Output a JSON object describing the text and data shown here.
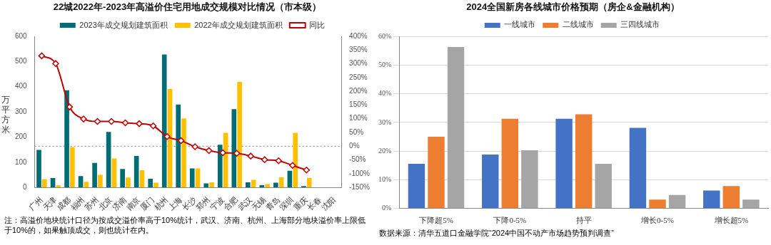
{
  "chart_data": [
    {
      "type": "bar",
      "title": "22城2022年-2023年高溢价住宅用地成交规模对比情况（市本级）",
      "ylabel": "万平方米",
      "categories": [
        "广州",
        "天津",
        "成都",
        "福州",
        "苏州",
        "北京",
        "济南",
        "南京",
        "厦门",
        "杭州",
        "上海",
        "长沙",
        "郑州",
        "宁波",
        "合肥",
        "武汉",
        "无锡",
        "青岛",
        "深圳",
        "重庆",
        "长春",
        "沈阳"
      ],
      "series": [
        {
          "name": "2023年成交规划建筑面积",
          "color": "#006d75",
          "values": [
            149,
            37,
            386,
            45,
            97,
            220,
            73,
            125,
            34,
            528,
            329,
            75,
            16,
            169,
            311,
            20,
            9,
            19,
            66,
            5,
            0,
            0
          ]
        },
        {
          "name": "2022年成交规划建筑面积",
          "color": "#ffc000",
          "values": [
            33,
            8,
            160,
            22,
            50,
            115,
            39,
            68,
            19,
            391,
            274,
            75,
            20,
            217,
            419,
            30,
            13,
            40,
            217,
            38,
            0,
            0
          ]
        },
        {
          "name": "同比",
          "type": "line",
          "axis": "y2",
          "color": "#c00000",
          "marker": "diamond",
          "values": [
            329,
            301,
            143,
            99,
            90,
            90,
            85,
            82,
            74,
            35,
            20,
            -2,
            -16,
            -24,
            -26,
            -36,
            -49,
            -53,
            -70,
            -87,
            null,
            null
          ]
        }
      ],
      "ylim": [
        0,
        600
      ],
      "yticks": [
        0,
        100,
        200,
        300,
        400,
        500,
        600
      ],
      "y2lim": [
        -150,
        400
      ],
      "y2ticks": [
        {
          "value": -150,
          "label": "-150%"
        },
        {
          "value": -100,
          "label": "-100%"
        },
        {
          "value": -50,
          "label": "-50%"
        },
        {
          "value": 0,
          "label": "0%"
        },
        {
          "value": 50,
          "label": "50%"
        },
        {
          "value": 100,
          "label": "100%"
        },
        {
          "value": 150,
          "label": "150%"
        },
        {
          "value": 200,
          "label": "200%"
        },
        {
          "value": 250,
          "label": "250%"
        },
        {
          "value": 300,
          "label": "300%"
        },
        {
          "value": 350,
          "label": "350%"
        },
        {
          "value": 400,
          "label": "400%"
        }
      ],
      "ref_lines": [
        {
          "axis": "y2",
          "value": 0,
          "color": "#7f7f7f",
          "line_style": "dotted"
        }
      ],
      "legend": "top",
      "grid": false,
      "annotations": [
        "注：高溢价地块统计口径为按成交溢价率高于10%统计，武汉、济南、杭州、上海部分地块溢价率上限低于10%的，如果触顶成交，则也统计在内。"
      ]
    },
    {
      "type": "bar",
      "title": "2024全国新房各线城市价格预期（房企&金融机构）",
      "categories": [
        "下降超5%",
        "下降0-5%",
        "持平",
        "增长0-5%",
        "增长超5%"
      ],
      "series": [
        {
          "name": "一线城市",
          "color": "#4472c4",
          "values": [
            15.6,
            18.8,
            31.3,
            28.1,
            6.3
          ]
        },
        {
          "name": "二线城市",
          "color": "#ed7d31",
          "values": [
            25.0,
            31.3,
            32.8,
            3.1,
            7.8
          ]
        },
        {
          "name": "三四线城市",
          "color": "#a5a5a5",
          "values": [
            56.3,
            20.3,
            15.6,
            4.7,
            3.1
          ]
        }
      ],
      "ylim": [
        0,
        60
      ],
      "yticks": [
        {
          "value": 0,
          "label": "0%"
        },
        {
          "value": 10,
          "label": "10%"
        },
        {
          "value": 20,
          "label": "20%"
        },
        {
          "value": 30,
          "label": "30%"
        },
        {
          "value": 40,
          "label": "40%"
        },
        {
          "value": 50,
          "label": "50%"
        },
        {
          "value": 60,
          "label": "60%"
        }
      ],
      "legend": "top",
      "grid": "y",
      "annotations": [
        "数据来源：清华五道口金融学院“2024中国不动产市场趋势预判调查”"
      ]
    }
  ]
}
